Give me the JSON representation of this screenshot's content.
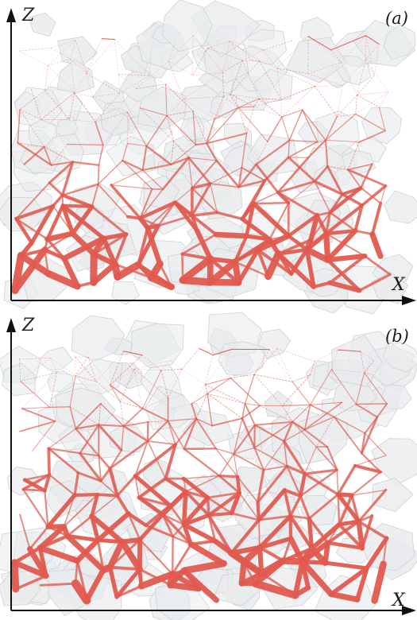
{
  "colors": {
    "force_chain": "#e05a4f",
    "grain_fill": "#e9ebed",
    "grain_edge": "#cfd3d6",
    "axis": "#111111"
  },
  "panels": [
    {
      "tag": "(a)",
      "x_axis_label": "X",
      "z_axis_label": "Z"
    },
    {
      "tag": "(b)",
      "x_axis_label": "X",
      "z_axis_label": "Z"
    }
  ]
}
